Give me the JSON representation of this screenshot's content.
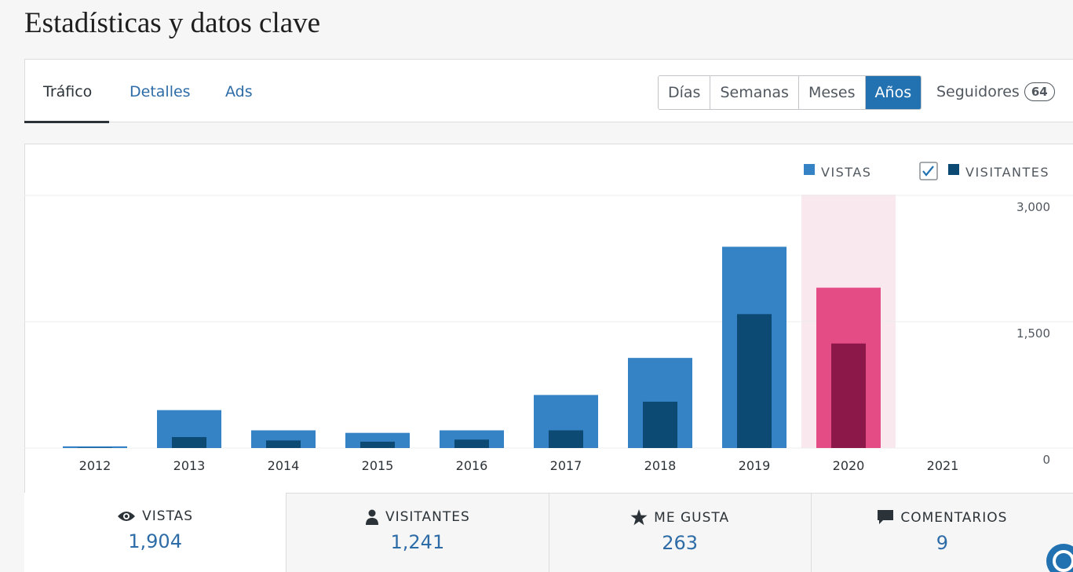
{
  "header": {
    "title": "Estadísticas y datos clave"
  },
  "tabs": [
    "Tráfico",
    "Detalles",
    "Ads"
  ],
  "periods": [
    "Días",
    "Semanas",
    "Meses",
    "Años"
  ],
  "followers": {
    "label": "Seguidores",
    "count": "64"
  },
  "chart_data": {
    "type": "bar",
    "categories": [
      "2012",
      "2013",
      "2014",
      "2015",
      "2016",
      "2017",
      "2018",
      "2019",
      "2020",
      "2021"
    ],
    "series": [
      {
        "name": "VISTAS",
        "color": "#3582c4",
        "highlight_color": "#e34c84",
        "values": [
          20,
          450,
          210,
          180,
          210,
          630,
          1070,
          2390,
          1904,
          0
        ]
      },
      {
        "name": "VISITANTES",
        "color": "#0c4a74",
        "highlight_color": "#8c1849",
        "values": [
          5,
          130,
          90,
          75,
          100,
          210,
          550,
          1590,
          1241,
          0
        ]
      }
    ],
    "highlight_category": "2020",
    "ylim": [
      0,
      3000
    ],
    "yticks": [
      0,
      {
        "value": 1500,
        "label": "1,500"
      },
      {
        "value": 3000,
        "label": "3,000"
      }
    ],
    "grid": true
  },
  "stats": [
    {
      "label": "VISTAS",
      "value": "1,904"
    },
    {
      "label": "VISITANTES",
      "value": "1,241"
    },
    {
      "label": "ME GUSTA",
      "value": "263"
    },
    {
      "label": "COMENTARIOS",
      "value": "9"
    }
  ]
}
